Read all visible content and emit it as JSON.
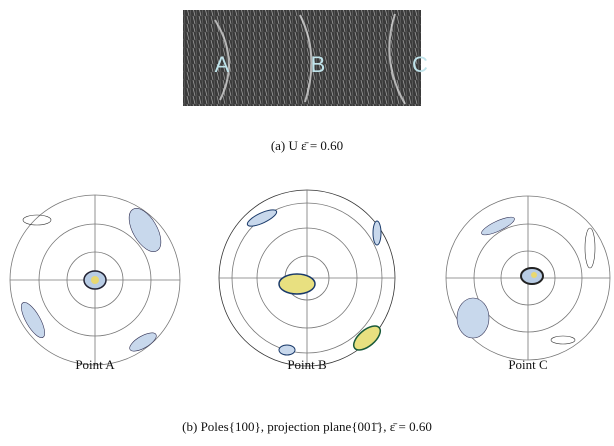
{
  "photo_labels": [
    "A",
    "B",
    "C"
  ],
  "caption_a": "(a) U  ε̄  =  0.60",
  "point_labels": [
    "Point  A",
    "Point B",
    "Point C"
  ],
  "caption_b": "(b) Poles{100}, projection plane{001̄},  ε̄  =  0.60"
}
